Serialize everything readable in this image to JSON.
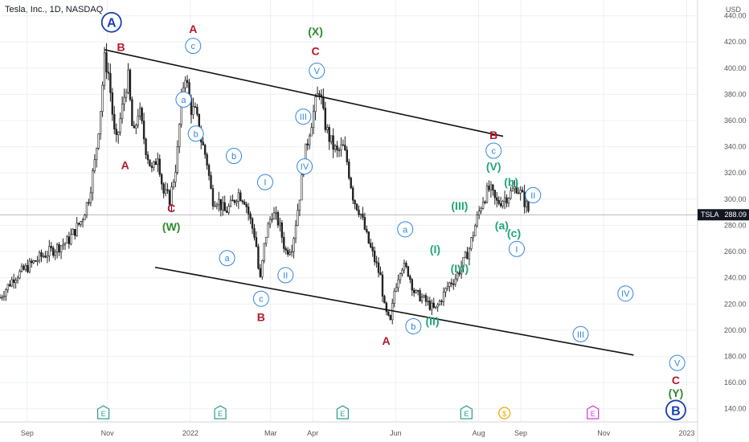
{
  "header": {
    "title": "Tesla, Inc., 1D, NASDAQ"
  },
  "colors": {
    "candle": "#222222",
    "trendline": "#111111",
    "blue": "#2f86e0",
    "darkblue": "#1a3fb0",
    "red": "#b5192d",
    "green": "#2e8b2e",
    "teal": "#1fa77a",
    "earnings": "#2a9d8f",
    "dividend": "#f0a500",
    "econ": "#d63ad6",
    "grid": "#eef0f3",
    "price_line": "#9aa0a6"
  },
  "chart_data": {
    "type": "candlestick",
    "symbol": "TSLA",
    "last_price": 288.09,
    "y_axis": {
      "unit": "USD",
      "ylim": [
        130,
        452
      ],
      "ticks": [
        140,
        160,
        180,
        200,
        220,
        240,
        260,
        280,
        300,
        320,
        340,
        360,
        380,
        400,
        420,
        440
      ]
    },
    "x_axis": {
      "labels": [
        "Sep",
        "Nov",
        "2022",
        "Mar",
        "Apr",
        "Jun",
        "Aug",
        "Sep",
        "Nov",
        "2023"
      ],
      "label_days": [
        -120,
        -61,
        0,
        59,
        90,
        151,
        212,
        243,
        304,
        365
      ]
    },
    "range_days": [
      -140,
      373
    ],
    "grid": true,
    "trendlines": [
      {
        "from": [
          -63,
          414
        ],
        "to": [
          230,
          348
        ]
      },
      {
        "from": [
          -26,
          248
        ],
        "to": [
          326,
          181
        ]
      }
    ],
    "price_path": [
      [
        -140,
        225
      ],
      [
        -130,
        240
      ],
      [
        -120,
        248
      ],
      [
        -110,
        256
      ],
      [
        -100,
        262
      ],
      [
        -90,
        268
      ],
      [
        -80,
        284
      ],
      [
        -75,
        300
      ],
      [
        -70,
        330
      ],
      [
        -66,
        370
      ],
      [
        -63,
        408
      ],
      [
        -60,
        395
      ],
      [
        -55,
        340
      ],
      [
        -50,
        370
      ],
      [
        -46,
        395
      ],
      [
        -42,
        345
      ],
      [
        -38,
        370
      ],
      [
        -33,
        340
      ],
      [
        -28,
        320
      ],
      [
        -24,
        335
      ],
      [
        -20,
        305
      ],
      [
        -15,
        300
      ],
      [
        -10,
        330
      ],
      [
        -7,
        370
      ],
      [
        -4,
        398
      ],
      [
        0,
        370
      ],
      [
        4,
        365
      ],
      [
        8,
        345
      ],
      [
        12,
        330
      ],
      [
        16,
        300
      ],
      [
        20,
        300
      ],
      [
        25,
        290
      ],
      [
        30,
        295
      ],
      [
        35,
        305
      ],
      [
        40,
        300
      ],
      [
        45,
        280
      ],
      [
        48,
        270
      ],
      [
        51,
        235
      ],
      [
        55,
        270
      ],
      [
        60,
        290
      ],
      [
        65,
        282
      ],
      [
        70,
        260
      ],
      [
        75,
        265
      ],
      [
        80,
        300
      ],
      [
        84,
        332
      ],
      [
        88,
        355
      ],
      [
        91,
        368
      ],
      [
        95,
        385
      ],
      [
        98,
        362
      ],
      [
        101,
        350
      ],
      [
        104,
        342
      ],
      [
        108,
        335
      ],
      [
        112,
        340
      ],
      [
        115,
        330
      ],
      [
        120,
        300
      ],
      [
        125,
        290
      ],
      [
        130,
        270
      ],
      [
        135,
        255
      ],
      [
        140,
        240
      ],
      [
        143,
        215
      ],
      [
        147,
        205
      ],
      [
        150,
        230
      ],
      [
        155,
        250
      ],
      [
        160,
        245
      ],
      [
        165,
        228
      ],
      [
        170,
        225
      ],
      [
        175,
        220
      ],
      [
        180,
        215
      ],
      [
        185,
        225
      ],
      [
        190,
        235
      ],
      [
        195,
        240
      ],
      [
        200,
        250
      ],
      [
        205,
        262
      ],
      [
        210,
        282
      ],
      [
        215,
        300
      ],
      [
        220,
        308
      ],
      [
        225,
        297
      ],
      [
        230,
        300
      ],
      [
        235,
        304
      ],
      [
        240,
        310
      ],
      [
        245,
        300
      ],
      [
        250,
        288
      ]
    ],
    "events": [
      {
        "day": -64,
        "type": "earnings",
        "label": "E"
      },
      {
        "day": 22,
        "type": "earnings",
        "label": "E"
      },
      {
        "day": 112,
        "type": "earnings",
        "label": "E"
      },
      {
        "day": 203,
        "type": "earnings",
        "label": "E"
      },
      {
        "day": 231,
        "type": "dividend",
        "label": "$"
      },
      {
        "day": 296,
        "type": "econ",
        "label": "E"
      }
    ],
    "annotations": [
      {
        "label": "A",
        "day": -58,
        "price": 435,
        "style": "bigcircle",
        "color": "darkblue"
      },
      {
        "label": "B",
        "day": -51,
        "price": 416,
        "style": "text",
        "color": "red"
      },
      {
        "label": "A",
        "day": -48,
        "price": 326,
        "style": "text",
        "color": "red"
      },
      {
        "label": "A",
        "day": 2,
        "price": 430,
        "style": "text",
        "color": "red"
      },
      {
        "label": "c",
        "day": 2,
        "price": 417,
        "style": "circle",
        "color": "blue"
      },
      {
        "label": "a",
        "day": -5,
        "price": 376,
        "style": "circle",
        "color": "blue"
      },
      {
        "label": "b",
        "day": 4,
        "price": 350,
        "style": "circle",
        "color": "blue"
      },
      {
        "label": "C",
        "day": -14,
        "price": 293,
        "style": "text",
        "color": "red"
      },
      {
        "label": "(W)",
        "day": -14,
        "price": 279,
        "style": "text",
        "color": "green"
      },
      {
        "label": "b",
        "day": 32,
        "price": 333,
        "style": "circle",
        "color": "blue"
      },
      {
        "label": "I",
        "day": 55,
        "price": 313,
        "style": "circle",
        "color": "blue"
      },
      {
        "label": "a",
        "day": 27,
        "price": 255,
        "style": "circle",
        "color": "blue"
      },
      {
        "label": "II",
        "day": 70,
        "price": 242,
        "style": "circle",
        "color": "blue"
      },
      {
        "label": "c",
        "day": 52,
        "price": 224,
        "style": "circle",
        "color": "blue"
      },
      {
        "label": "B",
        "day": 52,
        "price": 210,
        "style": "text",
        "color": "red"
      },
      {
        "label": "III",
        "day": 83,
        "price": 363,
        "style": "circle",
        "color": "blue"
      },
      {
        "label": "IV",
        "day": 84,
        "price": 325,
        "style": "circle",
        "color": "blue"
      },
      {
        "label": "(X)",
        "day": 92,
        "price": 428,
        "style": "text",
        "color": "green"
      },
      {
        "label": "C",
        "day": 92,
        "price": 413,
        "style": "text",
        "color": "red"
      },
      {
        "label": "V",
        "day": 93,
        "price": 398,
        "style": "circle",
        "color": "blue"
      },
      {
        "label": "A",
        "day": 144,
        "price": 192,
        "style": "text",
        "color": "red"
      },
      {
        "label": "a",
        "day": 158,
        "price": 277,
        "style": "circle",
        "color": "blue"
      },
      {
        "label": "b",
        "day": 164,
        "price": 203,
        "style": "circle",
        "color": "blue"
      },
      {
        "label": "(I)",
        "day": 180,
        "price": 262,
        "style": "text",
        "color": "teal"
      },
      {
        "label": "(II)",
        "day": 178,
        "price": 207,
        "style": "text",
        "color": "teal"
      },
      {
        "label": "(III)",
        "day": 198,
        "price": 295,
        "style": "text",
        "color": "teal"
      },
      {
        "label": "(IV)",
        "day": 198,
        "price": 247,
        "style": "text",
        "color": "teal"
      },
      {
        "label": "B",
        "day": 223,
        "price": 349,
        "style": "text",
        "color": "red"
      },
      {
        "label": "c",
        "day": 223,
        "price": 337,
        "style": "circle",
        "color": "blue"
      },
      {
        "label": "(V)",
        "day": 223,
        "price": 325,
        "style": "text",
        "color": "teal"
      },
      {
        "label": "(b)",
        "day": 236,
        "price": 313,
        "style": "text",
        "color": "teal"
      },
      {
        "label": "II",
        "day": 252,
        "price": 303,
        "style": "circle",
        "color": "blue"
      },
      {
        "label": "(a)",
        "day": 229,
        "price": 280,
        "style": "text",
        "color": "teal"
      },
      {
        "label": "(c)",
        "day": 238,
        "price": 274,
        "style": "text",
        "color": "teal"
      },
      {
        "label": "I",
        "day": 240,
        "price": 262,
        "style": "circle",
        "color": "blue"
      },
      {
        "label": "IV",
        "day": 320,
        "price": 228,
        "style": "circle",
        "color": "blue"
      },
      {
        "label": "III",
        "day": 287,
        "price": 197,
        "style": "circle",
        "color": "blue"
      },
      {
        "label": "V",
        "day": 358,
        "price": 175,
        "style": "circle",
        "color": "blue"
      },
      {
        "label": "C",
        "day": 357,
        "price": 162,
        "style": "text",
        "color": "red"
      },
      {
        "label": "(Y)",
        "day": 357,
        "price": 152,
        "style": "text",
        "color": "green"
      },
      {
        "label": "B",
        "day": 357,
        "price": 139,
        "style": "bigcircle",
        "color": "darkblue"
      }
    ]
  }
}
